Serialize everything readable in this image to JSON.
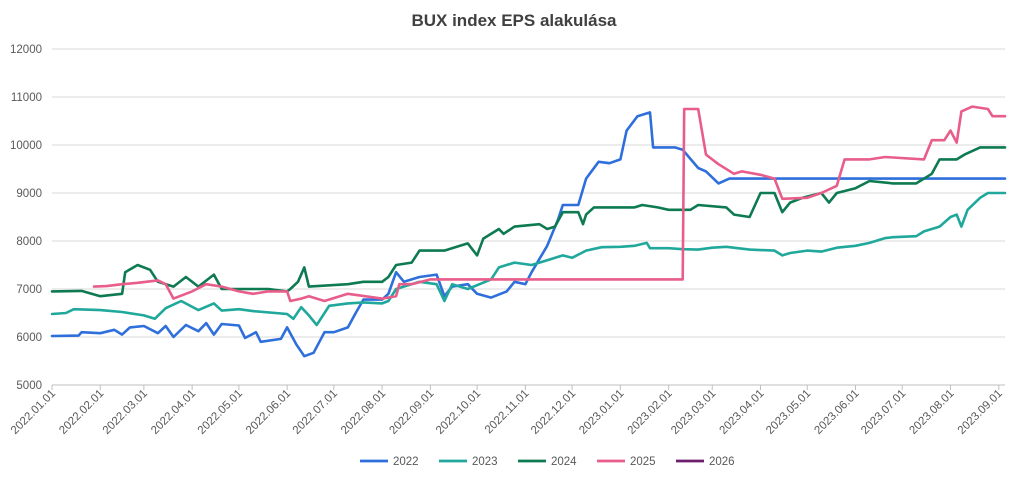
{
  "chart_data": {
    "type": "line",
    "title": "BUX index EPS alakulása",
    "xlabel": "",
    "ylabel": "",
    "ylim": [
      5000,
      12000
    ],
    "y_ticks": [
      5000,
      6000,
      7000,
      8000,
      9000,
      10000,
      11000,
      12000
    ],
    "x_range": [
      "2022.01.01",
      "2023.09.05"
    ],
    "x_ticks": [
      "2022.01.01",
      "2022.02.01",
      "2022.03.01",
      "2022.04.01",
      "2022.05.01",
      "2022.06.01",
      "2022.07.01",
      "2022.08.01",
      "2022.09.01",
      "2022.10.01",
      "2022.11.01",
      "2022.12.01",
      "2023.01.01",
      "2023.02.01",
      "2023.03.01",
      "2023.04.01",
      "2023.05.01",
      "2023.06.01",
      "2023.07.01",
      "2023.08.01",
      "2023.09.01"
    ],
    "grid": true,
    "legend": "bottom",
    "series": [
      {
        "name": "2022",
        "color": "#2e6fdc",
        "points": [
          [
            "2022.01.01",
            6020
          ],
          [
            "2022.01.18",
            6030
          ],
          [
            "2022.01.20",
            6100
          ],
          [
            "2022.02.01",
            6080
          ],
          [
            "2022.02.10",
            6150
          ],
          [
            "2022.02.15",
            6050
          ],
          [
            "2022.02.20",
            6200
          ],
          [
            "2022.03.01",
            6230
          ],
          [
            "2022.03.10",
            6080
          ],
          [
            "2022.03.15",
            6230
          ],
          [
            "2022.03.20",
            6000
          ],
          [
            "2022.03.28",
            6250
          ],
          [
            "2022.04.05",
            6120
          ],
          [
            "2022.04.10",
            6290
          ],
          [
            "2022.04.15",
            6050
          ],
          [
            "2022.04.20",
            6270
          ],
          [
            "2022.05.01",
            6240
          ],
          [
            "2022.05.05",
            5980
          ],
          [
            "2022.05.12",
            6100
          ],
          [
            "2022.05.15",
            5900
          ],
          [
            "2022.05.28",
            5960
          ],
          [
            "2022.06.01",
            6200
          ],
          [
            "2022.06.07",
            5840
          ],
          [
            "2022.06.12",
            5600
          ],
          [
            "2022.06.18",
            5670
          ],
          [
            "2022.06.25",
            6100
          ],
          [
            "2022.07.01",
            6100
          ],
          [
            "2022.07.10",
            6200
          ],
          [
            "2022.07.15",
            6500
          ],
          [
            "2022.07.20",
            6780
          ],
          [
            "2022.08.01",
            6780
          ],
          [
            "2022.08.05",
            6900
          ],
          [
            "2022.08.10",
            7350
          ],
          [
            "2022.08.15",
            7150
          ],
          [
            "2022.08.25",
            7250
          ],
          [
            "2022.09.05",
            7300
          ],
          [
            "2022.09.10",
            6850
          ],
          [
            "2022.09.15",
            7050
          ],
          [
            "2022.09.25",
            7100
          ],
          [
            "2022.10.01",
            6900
          ],
          [
            "2022.10.10",
            6820
          ],
          [
            "2022.10.20",
            6950
          ],
          [
            "2022.10.25",
            7150
          ],
          [
            "2022.11.01",
            7100
          ],
          [
            "2022.11.05",
            7350
          ],
          [
            "2022.11.15",
            7900
          ],
          [
            "2022.11.22",
            8450
          ],
          [
            "2022.11.25",
            8750
          ],
          [
            "2022.12.05",
            8750
          ],
          [
            "2022.12.10",
            9300
          ],
          [
            "2022.12.18",
            9650
          ],
          [
            "2022.12.25",
            9620
          ],
          [
            "2023.01.01",
            9700
          ],
          [
            "2023.01.05",
            10300
          ],
          [
            "2023.01.12",
            10600
          ],
          [
            "2023.01.20",
            10680
          ],
          [
            "2023.01.22",
            9950
          ],
          [
            "2023.02.05",
            9950
          ],
          [
            "2023.02.10",
            9900
          ],
          [
            "2023.02.20",
            9520
          ],
          [
            "2023.02.25",
            9450
          ],
          [
            "2023.03.05",
            9200
          ],
          [
            "2023.03.12",
            9300
          ],
          [
            "2023.09.05",
            9300
          ]
        ]
      },
      {
        "name": "2023",
        "color": "#1fa89b",
        "points": [
          [
            "2022.01.01",
            6480
          ],
          [
            "2022.01.10",
            6500
          ],
          [
            "2022.01.15",
            6580
          ],
          [
            "2022.02.01",
            6560
          ],
          [
            "2022.02.15",
            6520
          ],
          [
            "2022.03.01",
            6450
          ],
          [
            "2022.03.08",
            6380
          ],
          [
            "2022.03.15",
            6600
          ],
          [
            "2022.03.25",
            6750
          ],
          [
            "2022.04.05",
            6560
          ],
          [
            "2022.04.15",
            6700
          ],
          [
            "2022.04.20",
            6550
          ],
          [
            "2022.05.01",
            6580
          ],
          [
            "2022.05.10",
            6540
          ],
          [
            "2022.06.01",
            6480
          ],
          [
            "2022.06.05",
            6380
          ],
          [
            "2022.06.10",
            6620
          ],
          [
            "2022.06.15",
            6450
          ],
          [
            "2022.06.20",
            6250
          ],
          [
            "2022.06.28",
            6650
          ],
          [
            "2022.07.10",
            6700
          ],
          [
            "2022.07.20",
            6720
          ],
          [
            "2022.08.01",
            6700
          ],
          [
            "2022.08.05",
            6750
          ],
          [
            "2022.08.10",
            7000
          ],
          [
            "2022.08.25",
            7150
          ],
          [
            "2022.09.05",
            7100
          ],
          [
            "2022.09.10",
            6750
          ],
          [
            "2022.09.15",
            7100
          ],
          [
            "2022.09.25",
            7000
          ],
          [
            "2022.10.10",
            7200
          ],
          [
            "2022.10.15",
            7450
          ],
          [
            "2022.10.25",
            7550
          ],
          [
            "2022.11.05",
            7500
          ],
          [
            "2022.11.15",
            7600
          ],
          [
            "2022.11.25",
            7700
          ],
          [
            "2022.12.01",
            7650
          ],
          [
            "2022.12.10",
            7800
          ],
          [
            "2022.12.20",
            7870
          ],
          [
            "2023.01.01",
            7880
          ],
          [
            "2023.01.10",
            7900
          ],
          [
            "2023.01.18",
            7960
          ],
          [
            "2023.01.20",
            7850
          ],
          [
            "2023.02.01",
            7850
          ],
          [
            "2023.02.10",
            7830
          ],
          [
            "2023.02.20",
            7820
          ],
          [
            "2023.03.01",
            7860
          ],
          [
            "2023.03.10",
            7880
          ],
          [
            "2023.03.25",
            7820
          ],
          [
            "2023.04.10",
            7800
          ],
          [
            "2023.04.15",
            7700
          ],
          [
            "2023.04.20",
            7750
          ],
          [
            "2023.05.01",
            7800
          ],
          [
            "2023.05.10",
            7780
          ],
          [
            "2023.05.20",
            7860
          ],
          [
            "2023.06.01",
            7900
          ],
          [
            "2023.06.10",
            7960
          ],
          [
            "2023.06.20",
            8060
          ],
          [
            "2023.06.25",
            8080
          ],
          [
            "2023.07.10",
            8100
          ],
          [
            "2023.07.15",
            8200
          ],
          [
            "2023.07.25",
            8300
          ],
          [
            "2023.08.01",
            8500
          ],
          [
            "2023.08.05",
            8550
          ],
          [
            "2023.08.08",
            8300
          ],
          [
            "2023.08.12",
            8650
          ],
          [
            "2023.08.20",
            8900
          ],
          [
            "2023.08.25",
            9000
          ],
          [
            "2023.09.05",
            9000
          ]
        ]
      },
      {
        "name": "2024",
        "color": "#0e7a52",
        "points": [
          [
            "2022.01.01",
            6950
          ],
          [
            "2022.01.20",
            6960
          ],
          [
            "2022.02.01",
            6850
          ],
          [
            "2022.02.15",
            6900
          ],
          [
            "2022.02.17",
            7350
          ],
          [
            "2022.02.25",
            7500
          ],
          [
            "2022.03.05",
            7400
          ],
          [
            "2022.03.10",
            7150
          ],
          [
            "2022.03.20",
            7050
          ],
          [
            "2022.03.28",
            7250
          ],
          [
            "2022.04.05",
            7050
          ],
          [
            "2022.04.15",
            7300
          ],
          [
            "2022.04.20",
            7000
          ],
          [
            "2022.05.10",
            7000
          ],
          [
            "2022.05.20",
            7000
          ],
          [
            "2022.06.01",
            6950
          ],
          [
            "2022.06.03",
            7000
          ],
          [
            "2022.06.08",
            7150
          ],
          [
            "2022.06.12",
            7450
          ],
          [
            "2022.06.15",
            7050
          ],
          [
            "2022.07.10",
            7100
          ],
          [
            "2022.07.20",
            7150
          ],
          [
            "2022.08.01",
            7150
          ],
          [
            "2022.08.05",
            7250
          ],
          [
            "2022.08.10",
            7500
          ],
          [
            "2022.08.20",
            7550
          ],
          [
            "2022.08.25",
            7800
          ],
          [
            "2022.09.10",
            7800
          ],
          [
            "2022.09.20",
            7900
          ],
          [
            "2022.09.25",
            7950
          ],
          [
            "2022.10.01",
            7700
          ],
          [
            "2022.10.05",
            8050
          ],
          [
            "2022.10.15",
            8250
          ],
          [
            "2022.10.18",
            8150
          ],
          [
            "2022.10.25",
            8300
          ],
          [
            "2022.11.10",
            8350
          ],
          [
            "2022.11.15",
            8250
          ],
          [
            "2022.11.20",
            8300
          ],
          [
            "2022.11.25",
            8600
          ],
          [
            "2022.12.05",
            8600
          ],
          [
            "2022.12.08",
            8350
          ],
          [
            "2022.12.10",
            8550
          ],
          [
            "2022.12.15",
            8700
          ],
          [
            "2023.01.10",
            8700
          ],
          [
            "2023.01.15",
            8750
          ],
          [
            "2023.01.25",
            8700
          ],
          [
            "2023.02.01",
            8650
          ],
          [
            "2023.02.15",
            8650
          ],
          [
            "2023.02.20",
            8750
          ],
          [
            "2023.03.10",
            8700
          ],
          [
            "2023.03.15",
            8550
          ],
          [
            "2023.03.25",
            8500
          ],
          [
            "2023.04.01",
            9000
          ],
          [
            "2023.04.10",
            9000
          ],
          [
            "2023.04.15",
            8600
          ],
          [
            "2023.04.20",
            8800
          ],
          [
            "2023.04.28",
            8900
          ],
          [
            "2023.05.10",
            9000
          ],
          [
            "2023.05.15",
            8800
          ],
          [
            "2023.05.20",
            9000
          ],
          [
            "2023.06.01",
            9100
          ],
          [
            "2023.06.10",
            9250
          ],
          [
            "2023.06.25",
            9200
          ],
          [
            "2023.07.10",
            9200
          ],
          [
            "2023.07.20",
            9400
          ],
          [
            "2023.07.25",
            9700
          ],
          [
            "2023.08.05",
            9700
          ],
          [
            "2023.08.10",
            9800
          ],
          [
            "2023.08.20",
            9950
          ],
          [
            "2023.09.05",
            9950
          ]
        ]
      },
      {
        "name": "2025",
        "color": "#e85d8a",
        "points": [
          [
            "2022.01.28",
            7050
          ],
          [
            "2022.02.05",
            7060
          ],
          [
            "2022.02.15",
            7100
          ],
          [
            "2022.02.25",
            7130
          ],
          [
            "2022.03.10",
            7180
          ],
          [
            "2022.03.15",
            7100
          ],
          [
            "2022.03.20",
            6800
          ],
          [
            "2022.04.01",
            6950
          ],
          [
            "2022.04.10",
            7100
          ],
          [
            "2022.04.20",
            7050
          ],
          [
            "2022.05.01",
            6950
          ],
          [
            "2022.05.10",
            6900
          ],
          [
            "2022.05.20",
            6950
          ],
          [
            "2022.06.01",
            6950
          ],
          [
            "2022.06.03",
            6750
          ],
          [
            "2022.06.10",
            6800
          ],
          [
            "2022.06.15",
            6850
          ],
          [
            "2022.06.25",
            6750
          ],
          [
            "2022.07.10",
            6900
          ],
          [
            "2022.08.01",
            6800
          ],
          [
            "2022.08.10",
            6850
          ],
          [
            "2022.08.12",
            7100
          ],
          [
            "2022.08.20",
            7100
          ],
          [
            "2022.09.01",
            7200
          ],
          [
            "2022.10.01",
            7200
          ],
          [
            "2023.02.10",
            7200
          ],
          [
            "2023.02.11",
            10750
          ],
          [
            "2023.02.20",
            10750
          ],
          [
            "2023.02.25",
            9800
          ],
          [
            "2023.03.05",
            9600
          ],
          [
            "2023.03.15",
            9400
          ],
          [
            "2023.03.20",
            9450
          ],
          [
            "2023.04.01",
            9380
          ],
          [
            "2023.04.10",
            9300
          ],
          [
            "2023.04.15",
            8880
          ],
          [
            "2023.05.01",
            8900
          ],
          [
            "2023.05.10",
            9000
          ],
          [
            "2023.05.20",
            9150
          ],
          [
            "2023.05.25",
            9700
          ],
          [
            "2023.06.10",
            9700
          ],
          [
            "2023.06.20",
            9750
          ],
          [
            "2023.07.15",
            9700
          ],
          [
            "2023.07.20",
            10100
          ],
          [
            "2023.07.28",
            10100
          ],
          [
            "2023.08.01",
            10300
          ],
          [
            "2023.08.05",
            10050
          ],
          [
            "2023.08.08",
            10700
          ],
          [
            "2023.08.15",
            10800
          ],
          [
            "2023.08.25",
            10750
          ],
          [
            "2023.08.28",
            10600
          ],
          [
            "2023.09.05",
            10600
          ]
        ]
      },
      {
        "name": "2026",
        "color": "#6b1f6e",
        "points": []
      }
    ]
  }
}
